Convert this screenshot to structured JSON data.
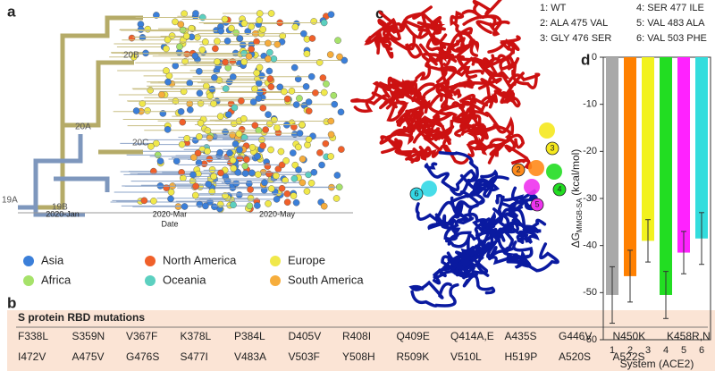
{
  "panel_a": {
    "label": "a",
    "dates": [
      "2020-Jan",
      "2020-Mar",
      "2020-May"
    ],
    "x_label": "Date",
    "clades": [
      "19A",
      "19B",
      "20A",
      "20B",
      "20C"
    ],
    "legend": [
      {
        "name": "Asia",
        "color": "#3b7fd9"
      },
      {
        "name": "North America",
        "color": "#f0602a"
      },
      {
        "name": "Europe",
        "color": "#f0e84a"
      },
      {
        "name": "Africa",
        "color": "#a6e26a"
      },
      {
        "name": "Oceania",
        "color": "#5cd0c0"
      },
      {
        "name": "South America",
        "color": "#f6ad3c"
      }
    ]
  },
  "panel_b": {
    "label": "b",
    "title": "S protein RBD mutations",
    "rows": [
      [
        "F338L",
        "S359N",
        "V367F",
        "K378L",
        "P384L",
        "D405V",
        "R408I",
        "Q409E",
        "Q414A,E",
        "A435S",
        "G446V",
        "N450K",
        "K458R,N"
      ],
      [
        "I472V",
        "A475V",
        "G476S",
        "S477I",
        "V483A",
        "V503F",
        "Y508H",
        "R509K",
        "V510L",
        "H519P",
        "A520S",
        "A522S"
      ]
    ]
  },
  "panel_c": {
    "label": "c",
    "systems": [
      "1: WT",
      "2: ALA 475 VAL",
      "3: GLY 476 SER",
      "4: SER 477 ILE",
      "5: VAL 483 ALA",
      "6: VAL 503 PHE"
    ],
    "sites": [
      "2",
      "3",
      "4",
      "5",
      "6"
    ]
  },
  "chart_data": {
    "type": "bar",
    "label": "d",
    "categories": [
      "1",
      "2",
      "3",
      "4",
      "5",
      "6"
    ],
    "values": [
      -50.5,
      -46.5,
      -39,
      -50.5,
      -41.5,
      -38.5
    ],
    "errors": [
      6,
      5.5,
      4.5,
      5,
      4.5,
      5.5
    ],
    "colors": [
      "#a9a9a9",
      "#ff8000",
      "#f2f21e",
      "#22dd22",
      "#ff22ff",
      "#33dddd"
    ],
    "ylim": [
      -60,
      0
    ],
    "yticks": [
      -60,
      -50,
      -40,
      -30,
      -20,
      -10,
      0
    ],
    "y_label": {
      "main": "ΔG",
      "sub": "MMGB-SA",
      "unit": "(kcal/mol)"
    },
    "x_label": "System (ACE2)"
  }
}
